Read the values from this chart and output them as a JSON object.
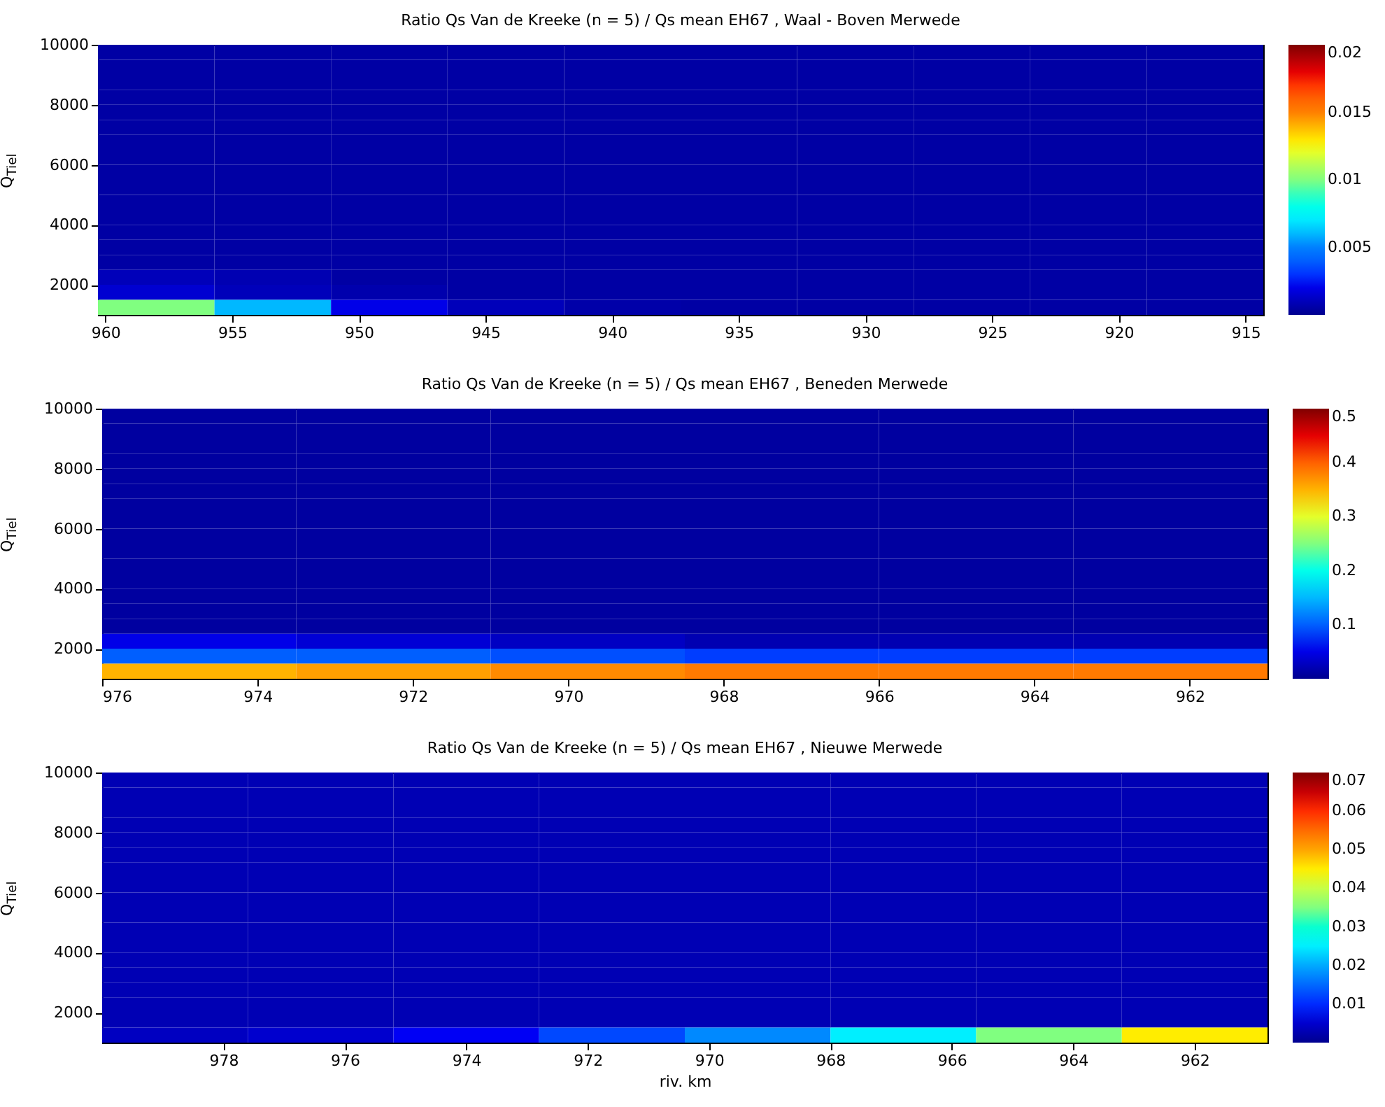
{
  "chart_data": [
    {
      "type": "heatmap",
      "title": "Ratio Qs Van de Kreeke (n = 5) / Qs mean EH67 , Waal - Boven Merwede",
      "ylabel": "Q$_{Tiel}$",
      "x": [
        958,
        953.4,
        948.8,
        944.2,
        939.6,
        935,
        930.4,
        925.8,
        921.2,
        916.6
      ],
      "y": [
        9750,
        9250,
        8750,
        8250,
        7750,
        7250,
        6750,
        6250,
        5750,
        5250,
        4750,
        4250,
        3750,
        3250,
        2750,
        2250,
        1750,
        1250
      ],
      "xlim": [
        960.3,
        914.3
      ],
      "xticks": [
        960,
        955,
        950,
        945,
        940,
        935,
        930,
        925,
        920,
        915
      ],
      "ylim": [
        1000,
        10000
      ],
      "yticks": [
        2000,
        4000,
        6000,
        8000,
        10000
      ],
      "cells": [
        [
          0.0005,
          0.0005,
          0.0005,
          0.0005,
          0.0005,
          0.0005,
          0.0005,
          0.0005,
          0.0005,
          0.0005
        ],
        [
          0.0005,
          0.0005,
          0.0005,
          0.0005,
          0.0005,
          0.0005,
          0.0005,
          0.0005,
          0.0005,
          0.0005
        ],
        [
          0.0005,
          0.0005,
          0.0005,
          0.0005,
          0.0005,
          0.0005,
          0.0005,
          0.0005,
          0.0005,
          0.0005
        ],
        [
          0.0005,
          0.0005,
          0.0005,
          0.0005,
          0.0005,
          0.0005,
          0.0005,
          0.0005,
          0.0005,
          0.0005
        ],
        [
          0.0005,
          0.0005,
          0.0005,
          0.0005,
          0.0005,
          0.0005,
          0.0005,
          0.0005,
          0.0005,
          0.0005
        ],
        [
          0.0005,
          0.0005,
          0.0005,
          0.0005,
          0.0005,
          0.0005,
          0.0005,
          0.0005,
          0.0005,
          0.0005
        ],
        [
          0.0005,
          0.0005,
          0.0005,
          0.0005,
          0.0005,
          0.0005,
          0.0005,
          0.0005,
          0.0005,
          0.0005
        ],
        [
          0.0005,
          0.0005,
          0.0005,
          0.0005,
          0.0005,
          0.0005,
          0.0005,
          0.0005,
          0.0005,
          0.0005
        ],
        [
          0.0005,
          0.0005,
          0.0005,
          0.0005,
          0.0005,
          0.0005,
          0.0005,
          0.0005,
          0.0005,
          0.0005
        ],
        [
          0.0005,
          0.0005,
          0.0005,
          0.0005,
          0.0005,
          0.0005,
          0.0005,
          0.0005,
          0.0005,
          0.0005
        ],
        [
          0.0005,
          0.0005,
          0.0005,
          0.0005,
          0.0005,
          0.0005,
          0.0005,
          0.0005,
          0.0005,
          0.0005
        ],
        [
          0.0005,
          0.0005,
          0.0005,
          0.0005,
          0.0005,
          0.0005,
          0.0005,
          0.0005,
          0.0005,
          0.0005
        ],
        [
          0.0005,
          0.0005,
          0.0005,
          0.0005,
          0.0005,
          0.0005,
          0.0005,
          0.0005,
          0.0005,
          0.0005
        ],
        [
          0.0005,
          0.0005,
          0.0005,
          0.0005,
          0.0005,
          0.0005,
          0.0005,
          0.0005,
          0.0005,
          0.0005
        ],
        [
          0.0005,
          0.0005,
          0.0005,
          0.0005,
          0.0005,
          0.0005,
          0.0005,
          0.0005,
          0.0005,
          0.0005
        ],
        [
          0.001,
          0.0008,
          0.0005,
          0.0005,
          0.0005,
          0.0005,
          0.0005,
          0.0005,
          0.0005,
          0.0005
        ],
        [
          0.0015,
          0.001,
          0.0007,
          0.0005,
          0.0005,
          0.0005,
          0.0005,
          0.0005,
          0.0005,
          0.0005
        ],
        [
          0.01,
          0.006,
          0.002,
          0.001,
          0.0006,
          0.0005,
          0.0005,
          0.0005,
          0.0005,
          0.0005
        ]
      ],
      "clim": [
        0,
        0.02
      ],
      "cticks": [
        0.005,
        0.01,
        0.015,
        0.02
      ],
      "colors": [
        "#00008f",
        "#0000ff",
        "#0080ff",
        "#00ffff",
        "#80ff80",
        "#ffff00",
        "#ff8000",
        "#ff0000",
        "#800000"
      ]
    },
    {
      "type": "heatmap",
      "title": "Ratio Qs Van de Kreeke (n = 5) / Qs mean EH67 , Beneden Merwede",
      "ylabel": "Q$_{Tiel}$",
      "x": [
        974.75,
        972.25,
        969.75,
        967.25,
        964.75,
        962.25
      ],
      "y": [
        9750,
        9250,
        8750,
        8250,
        7750,
        7250,
        6750,
        6250,
        5750,
        5250,
        4750,
        4250,
        3750,
        3250,
        2750,
        2250,
        1750,
        1250
      ],
      "xlim": [
        976,
        961
      ],
      "xticks": [
        976,
        974,
        972,
        970,
        968,
        966,
        964,
        962
      ],
      "ylim": [
        1000,
        10000
      ],
      "yticks": [
        2000,
        4000,
        6000,
        8000,
        10000
      ],
      "cells": [
        [
          0.01,
          0.01,
          0.01,
          0.01,
          0.01,
          0.01
        ],
        [
          0.01,
          0.01,
          0.01,
          0.01,
          0.01,
          0.01
        ],
        [
          0.01,
          0.01,
          0.01,
          0.01,
          0.01,
          0.01
        ],
        [
          0.01,
          0.01,
          0.01,
          0.01,
          0.01,
          0.01
        ],
        [
          0.01,
          0.01,
          0.01,
          0.01,
          0.01,
          0.01
        ],
        [
          0.01,
          0.01,
          0.01,
          0.01,
          0.01,
          0.01
        ],
        [
          0.01,
          0.01,
          0.01,
          0.01,
          0.01,
          0.01
        ],
        [
          0.01,
          0.01,
          0.01,
          0.01,
          0.01,
          0.01
        ],
        [
          0.01,
          0.01,
          0.01,
          0.01,
          0.01,
          0.01
        ],
        [
          0.01,
          0.01,
          0.01,
          0.01,
          0.01,
          0.01
        ],
        [
          0.01,
          0.01,
          0.01,
          0.01,
          0.01,
          0.01
        ],
        [
          0.01,
          0.01,
          0.01,
          0.01,
          0.01,
          0.01
        ],
        [
          0.01,
          0.01,
          0.01,
          0.01,
          0.01,
          0.01
        ],
        [
          0.01,
          0.01,
          0.01,
          0.01,
          0.01,
          0.01
        ],
        [
          0.01,
          0.01,
          0.01,
          0.01,
          0.01,
          0.01
        ],
        [
          0.05,
          0.04,
          0.03,
          0.02,
          0.02,
          0.02
        ],
        [
          0.1,
          0.1,
          0.09,
          0.08,
          0.08,
          0.08
        ],
        [
          0.35,
          0.36,
          0.37,
          0.38,
          0.38,
          0.38
        ]
      ],
      "clim": [
        0,
        0.5
      ],
      "cticks": [
        0.1,
        0.2,
        0.3,
        0.4,
        0.5
      ],
      "colors": [
        "#00008f",
        "#0000ff",
        "#0080ff",
        "#00ffff",
        "#80ff80",
        "#ffff00",
        "#ff8000",
        "#ff0000",
        "#800000"
      ]
    },
    {
      "type": "heatmap",
      "title": "Ratio Qs Van de Kreeke (n = 5) / Qs mean EH67 , Nieuwe Merwede",
      "xlabel": "riv. km",
      "ylabel": "Q$_{Tiel}$",
      "x": [
        978.8,
        976.4,
        974,
        971.6,
        969.2,
        966.8,
        964.4,
        962
      ],
      "y": [
        9750,
        9250,
        8750,
        8250,
        7750,
        7250,
        6750,
        6250,
        5750,
        5250,
        4750,
        4250,
        3750,
        3250,
        2750,
        2250,
        1750,
        1250
      ],
      "xlim": [
        980,
        960.8
      ],
      "xticks": [
        978,
        976,
        974,
        972,
        970,
        968,
        966,
        964,
        962
      ],
      "ylim": [
        1000,
        10000
      ],
      "yticks": [
        2000,
        4000,
        6000,
        8000,
        10000
      ],
      "cells": [
        [
          0.003,
          0.003,
          0.003,
          0.003,
          0.003,
          0.003,
          0.003,
          0.003
        ],
        [
          0.003,
          0.003,
          0.003,
          0.003,
          0.003,
          0.003,
          0.003,
          0.003
        ],
        [
          0.003,
          0.003,
          0.003,
          0.003,
          0.003,
          0.003,
          0.003,
          0.003
        ],
        [
          0.003,
          0.003,
          0.003,
          0.003,
          0.003,
          0.003,
          0.003,
          0.003
        ],
        [
          0.003,
          0.003,
          0.003,
          0.003,
          0.003,
          0.003,
          0.003,
          0.003
        ],
        [
          0.003,
          0.003,
          0.003,
          0.003,
          0.003,
          0.003,
          0.003,
          0.003
        ],
        [
          0.003,
          0.003,
          0.003,
          0.003,
          0.003,
          0.003,
          0.003,
          0.003
        ],
        [
          0.003,
          0.003,
          0.003,
          0.003,
          0.003,
          0.003,
          0.003,
          0.003
        ],
        [
          0.003,
          0.003,
          0.003,
          0.003,
          0.003,
          0.003,
          0.003,
          0.003
        ],
        [
          0.003,
          0.003,
          0.003,
          0.003,
          0.003,
          0.003,
          0.003,
          0.003
        ],
        [
          0.003,
          0.003,
          0.003,
          0.003,
          0.003,
          0.003,
          0.003,
          0.003
        ],
        [
          0.003,
          0.003,
          0.003,
          0.003,
          0.003,
          0.003,
          0.003,
          0.003
        ],
        [
          0.003,
          0.003,
          0.003,
          0.003,
          0.003,
          0.003,
          0.003,
          0.003
        ],
        [
          0.003,
          0.003,
          0.003,
          0.003,
          0.003,
          0.003,
          0.003,
          0.003
        ],
        [
          0.003,
          0.003,
          0.003,
          0.003,
          0.003,
          0.003,
          0.003,
          0.003
        ],
        [
          0.003,
          0.003,
          0.003,
          0.003,
          0.003,
          0.003,
          0.003,
          0.003
        ],
        [
          0.003,
          0.003,
          0.003,
          0.003,
          0.003,
          0.003,
          0.003,
          0.003
        ],
        [
          0.004,
          0.005,
          0.008,
          0.012,
          0.018,
          0.025,
          0.035,
          0.045
        ]
      ],
      "clim": [
        0,
        0.07
      ],
      "cticks": [
        0.01,
        0.02,
        0.03,
        0.04,
        0.05,
        0.06,
        0.07
      ],
      "colors": [
        "#00008f",
        "#0000ff",
        "#0080ff",
        "#00ffff",
        "#80ff80",
        "#ffff00",
        "#ff8000",
        "#ff0000",
        "#800000"
      ]
    }
  ]
}
